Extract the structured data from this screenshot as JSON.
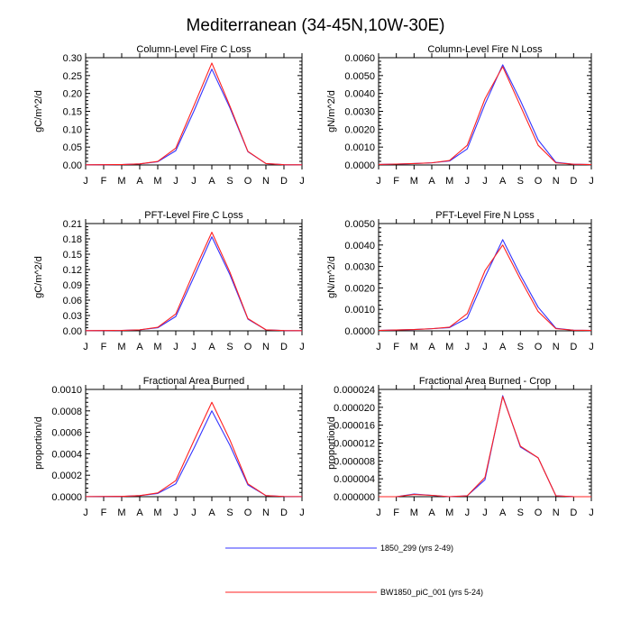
{
  "figure_title": "Mediterranean (34-45N,10W-30E)",
  "colors": {
    "series_1": "#3333ff",
    "series_2": "#ff2020",
    "axis": "#000000"
  },
  "legend": [
    {
      "label": "1850_299 (yrs 2-49)",
      "color": "#3333ff"
    },
    {
      "label": "BW1850_piC_001 (yrs 5-24)",
      "color": "#ff2020"
    }
  ],
  "chart_data": [
    {
      "type": "line",
      "title": "Column-Level Fire C Loss",
      "ylabel": "gC/m^2/d",
      "categories": [
        "J",
        "F",
        "M",
        "A",
        "M",
        "J",
        "J",
        "A",
        "S",
        "O",
        "N",
        "D",
        "J"
      ],
      "yticks": [
        "0.00",
        "0.05",
        "0.10",
        "0.15",
        "0.20",
        "0.25",
        "0.30"
      ],
      "ylim": [
        0,
        0.3
      ],
      "series": [
        {
          "name": "1850_299 (yrs 2-49)",
          "color": "#3333ff",
          "values": [
            0.0005,
            0.0008,
            0.0012,
            0.003,
            0.009,
            0.04,
            0.15,
            0.268,
            0.16,
            0.037,
            0.004,
            0.0007,
            0.0004
          ]
        },
        {
          "name": "BW1850_piC_001 (yrs 5-24)",
          "color": "#ff2020",
          "values": [
            0.0005,
            0.0008,
            0.0012,
            0.003,
            0.01,
            0.047,
            0.165,
            0.285,
            0.165,
            0.038,
            0.004,
            0.0007,
            0.0004
          ]
        }
      ]
    },
    {
      "type": "line",
      "title": "Column-Level Fire N Loss",
      "ylabel": "gN/m^2/d",
      "categories": [
        "J",
        "F",
        "M",
        "A",
        "M",
        "J",
        "J",
        "A",
        "S",
        "O",
        "N",
        "D",
        "J"
      ],
      "yticks": [
        "0.0000",
        "0.0010",
        "0.0020",
        "0.0030",
        "0.0040",
        "0.0050",
        "0.0060"
      ],
      "ylim": [
        0,
        0.006
      ],
      "series": [
        {
          "name": "1850_299 (yrs 2-49)",
          "color": "#3333ff",
          "values": [
            3e-05,
            5e-05,
            8e-05,
            0.00012,
            0.00022,
            0.0009,
            0.0034,
            0.0056,
            0.0036,
            0.0014,
            0.00015,
            4e-05,
            2e-05
          ]
        },
        {
          "name": "BW1850_piC_001 (yrs 5-24)",
          "color": "#ff2020",
          "values": [
            3e-05,
            5e-05,
            8e-05,
            0.00012,
            0.00025,
            0.0011,
            0.0037,
            0.0055,
            0.0033,
            0.0011,
            0.00012,
            4e-05,
            2e-05
          ]
        }
      ]
    },
    {
      "type": "line",
      "title": "PFT-Level Fire C Loss",
      "ylabel": "gC/m^2/d",
      "categories": [
        "J",
        "F",
        "M",
        "A",
        "M",
        "J",
        "J",
        "A",
        "S",
        "O",
        "N",
        "D",
        "J"
      ],
      "yticks": [
        "0.00",
        "0.03",
        "0.06",
        "0.09",
        "0.12",
        "0.15",
        "0.18",
        "0.21"
      ],
      "ylim": [
        0,
        0.21
      ],
      "series": [
        {
          "name": "1850_299 (yrs 2-49)",
          "color": "#3333ff",
          "values": [
            0.0003,
            0.0005,
            0.0008,
            0.002,
            0.006,
            0.028,
            0.105,
            0.184,
            0.11,
            0.023,
            0.002,
            0.0005,
            0.0003
          ]
        },
        {
          "name": "BW1850_piC_001 (yrs 5-24)",
          "color": "#ff2020",
          "values": [
            0.0003,
            0.0005,
            0.0008,
            0.002,
            0.007,
            0.033,
            0.115,
            0.193,
            0.115,
            0.024,
            0.002,
            0.0005,
            0.0003
          ]
        }
      ]
    },
    {
      "type": "line",
      "title": "PFT-Level Fire N Loss",
      "ylabel": "gN/m^2/d",
      "categories": [
        "J",
        "F",
        "M",
        "A",
        "M",
        "J",
        "J",
        "A",
        "S",
        "O",
        "N",
        "D",
        "J"
      ],
      "yticks": [
        "0.0000",
        "0.0010",
        "0.0020",
        "0.0030",
        "0.0040",
        "0.0050"
      ],
      "ylim": [
        0,
        0.005
      ],
      "series": [
        {
          "name": "1850_299 (yrs 2-49)",
          "color": "#3333ff",
          "values": [
            2e-05,
            4e-05,
            6e-05,
            0.0001,
            0.00015,
            0.0006,
            0.0025,
            0.00425,
            0.0026,
            0.0011,
            0.00012,
            3e-05,
            2e-05
          ]
        },
        {
          "name": "BW1850_piC_001 (yrs 5-24)",
          "color": "#ff2020",
          "values": [
            2e-05,
            4e-05,
            6e-05,
            0.0001,
            0.00017,
            0.0008,
            0.0028,
            0.004,
            0.0024,
            0.0009,
            0.0001,
            3e-05,
            2e-05
          ]
        }
      ]
    },
    {
      "type": "line",
      "title": "Fractional Area Burned",
      "ylabel": "proportion/d",
      "categories": [
        "J",
        "F",
        "M",
        "A",
        "M",
        "J",
        "J",
        "A",
        "S",
        "O",
        "N",
        "D",
        "J"
      ],
      "yticks": [
        "0.0000",
        "0.0002",
        "0.0004",
        "0.0006",
        "0.0008",
        "0.0010"
      ],
      "ylim": [
        0,
        0.001
      ],
      "series": [
        {
          "name": "1850_299 (yrs 2-49)",
          "color": "#3333ff",
          "values": [
            1e-06,
            2e-06,
            3e-06,
            1e-05,
            3e-05,
            0.00012,
            0.00045,
            0.0008,
            0.00048,
            0.00011,
            1e-05,
            2e-06,
            1e-06
          ]
        },
        {
          "name": "BW1850_piC_001 (yrs 5-24)",
          "color": "#ff2020",
          "values": [
            1e-06,
            2e-06,
            3e-06,
            1e-05,
            3.5e-05,
            0.00015,
            0.00052,
            0.00088,
            0.00053,
            0.00012,
            1e-05,
            2e-06,
            1e-06
          ]
        }
      ]
    },
    {
      "type": "line",
      "title": "Fractional Area Burned - Crop",
      "ylabel": "proportion/d",
      "categories": [
        "J",
        "F",
        "M",
        "A",
        "M",
        "J",
        "J",
        "A",
        "S",
        "O",
        "N",
        "D",
        "J"
      ],
      "yticks": [
        "0.000000",
        "0.000004",
        "0.000008",
        "0.000012",
        "0.000016",
        "0.000020",
        "0.000024"
      ],
      "ylim": [
        0,
        2.4e-05
      ],
      "series": [
        {
          "name": "1850_299 (yrs 2-49)",
          "color": "#3333ff",
          "values": [
            0,
            0,
            6e-07,
            3e-07,
            0,
            2e-07,
            3.8e-06,
            2.26e-05,
            1.11e-05,
            8.7e-06,
            2e-07,
            0,
            0
          ]
        },
        {
          "name": "BW1850_piC_001 (yrs 5-24)",
          "color": "#ff2020",
          "values": [
            0,
            0,
            5e-07,
            3e-07,
            0,
            2e-07,
            4.3e-06,
            2.24e-05,
            1.13e-05,
            8.7e-06,
            2e-07,
            0,
            0
          ]
        }
      ]
    }
  ]
}
